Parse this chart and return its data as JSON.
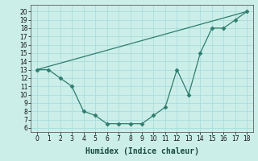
{
  "xlabel": "Humidex (Indice chaleur)",
  "background_color": "#cceee8",
  "line_color": "#2e7d6e",
  "grid_color": "#aadddd",
  "xlim": [
    -0.5,
    18.5
  ],
  "ylim": [
    5.5,
    20.8
  ],
  "xticks": [
    0,
    1,
    2,
    3,
    4,
    5,
    6,
    7,
    8,
    9,
    10,
    11,
    12,
    13,
    14,
    15,
    16,
    17,
    18
  ],
  "yticks": [
    6,
    7,
    8,
    9,
    10,
    11,
    12,
    13,
    14,
    15,
    16,
    17,
    18,
    19,
    20
  ],
  "curve_x": [
    0,
    1,
    2,
    3,
    4,
    5,
    6,
    7,
    8,
    9,
    10,
    11,
    12,
    13,
    14,
    15,
    16,
    17,
    18
  ],
  "curve_y": [
    13,
    13,
    12,
    11,
    8,
    7.5,
    6.5,
    6.5,
    6.5,
    6.5,
    7.5,
    8.5,
    13,
    10,
    15,
    18,
    18,
    19,
    20
  ],
  "line_x": [
    0,
    18
  ],
  "line_y": [
    13,
    20
  ],
  "marker": "D",
  "marker_size": 2.5,
  "tick_fontsize": 5.5,
  "xlabel_fontsize": 7.0
}
